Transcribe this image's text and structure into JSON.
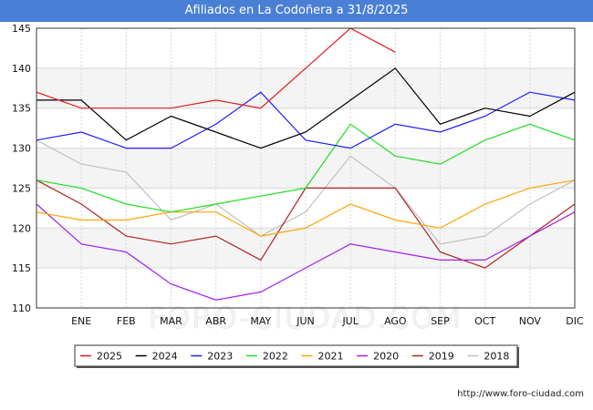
{
  "chart_data": {
    "type": "line",
    "title": "Afiliados en La Codoñera a 31/8/2025",
    "categories": [
      "",
      "ENE",
      "FEB",
      "MAR",
      "ABR",
      "MAY",
      "JUN",
      "JUL",
      "AGO",
      "SEP",
      "OCT",
      "NOV",
      "DIC"
    ],
    "ylim": [
      110,
      145
    ],
    "yticks": [
      110,
      115,
      120,
      125,
      130,
      135,
      140,
      145
    ],
    "grid": true,
    "legend_position": "bottom",
    "series": [
      {
        "name": "2025",
        "color": "#e41a1c",
        "values": [
          137,
          135,
          135,
          135,
          136,
          135,
          140,
          145,
          142,
          null,
          null,
          null,
          null
        ]
      },
      {
        "name": "2024",
        "color": "#000000",
        "values": [
          136,
          136,
          131,
          134,
          132,
          130,
          132,
          136,
          140,
          133,
          135,
          134,
          137
        ]
      },
      {
        "name": "2023",
        "color": "#1f1fff",
        "values": [
          131,
          132,
          130,
          130,
          133,
          137,
          131,
          130,
          133,
          132,
          134,
          137,
          136
        ]
      },
      {
        "name": "2022",
        "color": "#22dd22",
        "values": [
          126,
          125,
          123,
          122,
          123,
          124,
          125,
          133,
          129,
          128,
          131,
          133,
          131
        ]
      },
      {
        "name": "2021",
        "color": "#ffa500",
        "values": [
          122,
          121,
          121,
          122,
          122,
          119,
          120,
          123,
          121,
          120,
          123,
          125,
          126
        ]
      },
      {
        "name": "2020",
        "color": "#a020f0",
        "values": [
          123,
          118,
          117,
          113,
          111,
          112,
          115,
          118,
          117,
          116,
          116,
          119,
          122
        ]
      },
      {
        "name": "2019",
        "color": "#b22222",
        "values": [
          126,
          123,
          119,
          118,
          119,
          116,
          125,
          125,
          125,
          117,
          115,
          119,
          123
        ]
      },
      {
        "name": "2018",
        "color": "#c0c0c0",
        "values": [
          131,
          128,
          127,
          121,
          123,
          119,
          122,
          129,
          125,
          118,
          119,
          123,
          126
        ]
      }
    ]
  },
  "watermark": "FORO-CIUDAD.COM",
  "source": "http://www.foro-ciudad.com"
}
